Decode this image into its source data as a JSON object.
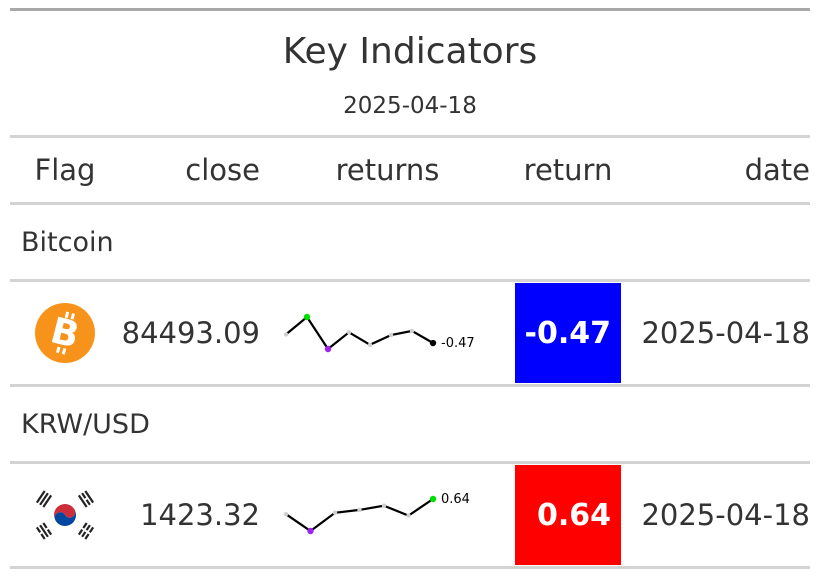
{
  "table": {
    "title": "Key Indicators",
    "subtitle": "2025-04-18",
    "columns": {
      "flag": "Flag",
      "close": "close",
      "returns": "returns",
      "return": "return",
      "date": "date"
    },
    "groups": [
      {
        "label": "Bitcoin",
        "row": {
          "flag_icon": "bitcoin-icon",
          "close": "84493.09",
          "sparkline_values": [
            0.15,
            1.4,
            -0.9,
            0.3,
            -0.6,
            0.1,
            0.4,
            -0.47
          ],
          "sparkline_label": "-0.47",
          "return": "-0.47",
          "return_color": "#0000ff",
          "date": "2025-04-18"
        }
      },
      {
        "label": "KRW/USD",
        "row": {
          "flag_icon": "south-korea-flag-icon",
          "close": "1423.32",
          "sparkline_values": [
            0.1,
            -0.5,
            0.15,
            0.25,
            0.4,
            0.05,
            0.64
          ],
          "sparkline_label": "0.64",
          "return": "0.64",
          "return_color": "#ff0000",
          "date": "2025-04-18"
        }
      }
    ]
  }
}
